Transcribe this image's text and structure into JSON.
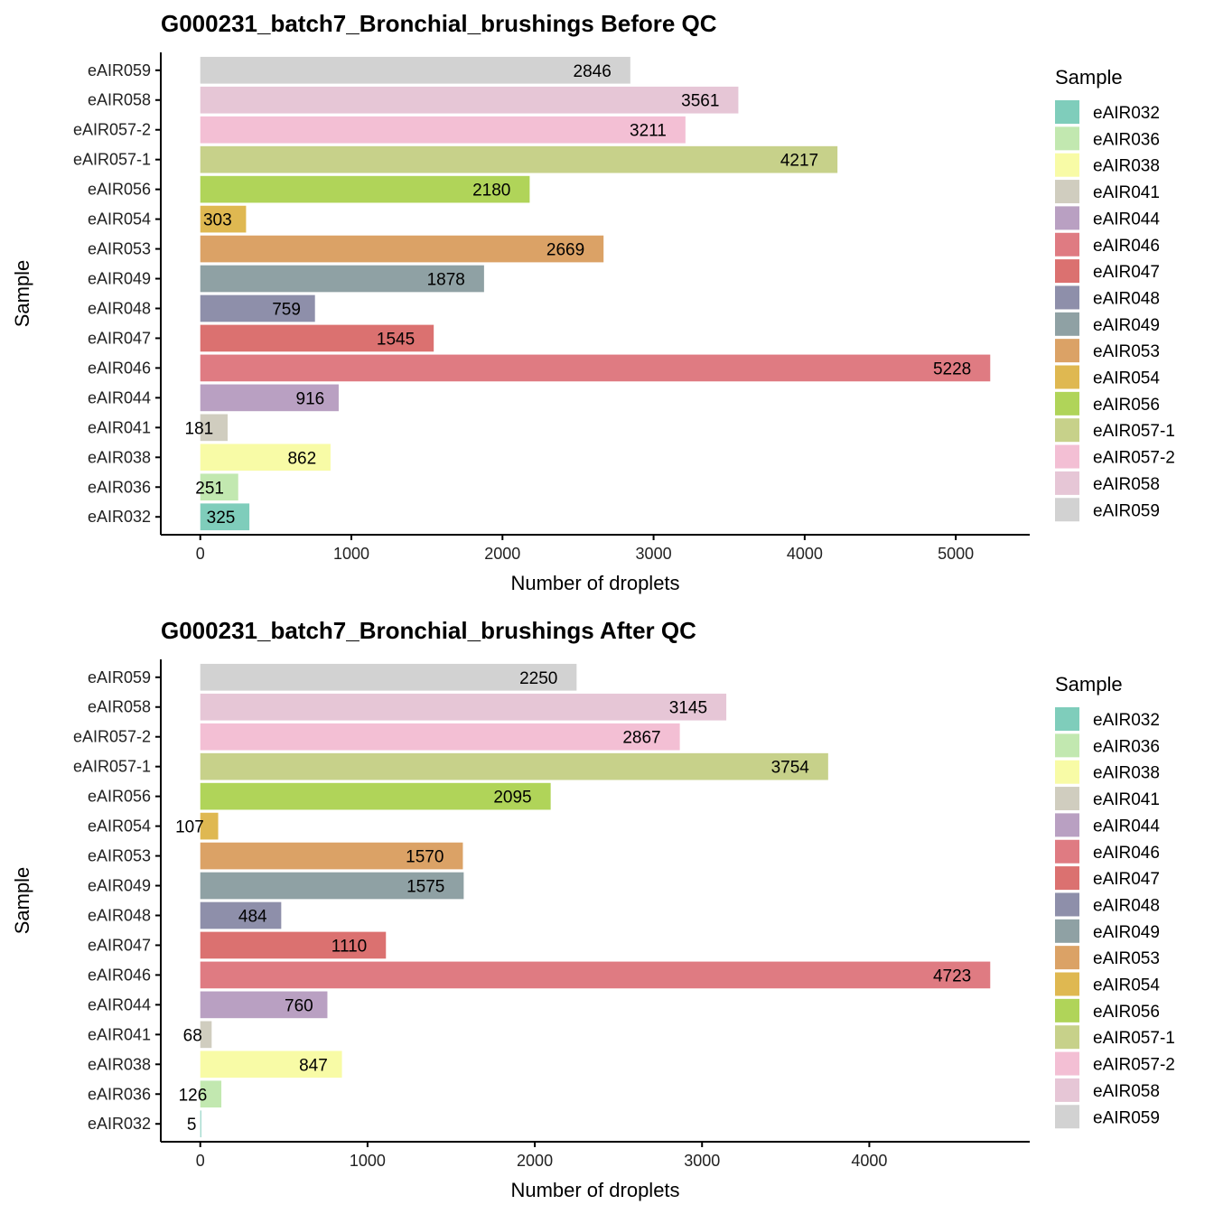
{
  "legend": {
    "title": "Sample",
    "items": [
      "eAIR032",
      "eAIR036",
      "eAIR038",
      "eAIR041",
      "eAIR044",
      "eAIR046",
      "eAIR047",
      "eAIR048",
      "eAIR049",
      "eAIR053",
      "eAIR054",
      "eAIR056",
      "eAIR057-1",
      "eAIR057-2",
      "eAIR058",
      "eAIR059"
    ],
    "colors": [
      "#7FCDBB",
      "#C2E8B0",
      "#F8FBA6",
      "#D0CDBF",
      "#B9A0C2",
      "#DF7B82",
      "#DB7170",
      "#8E8FAA",
      "#8FA1A4",
      "#DBA266",
      "#DFB851",
      "#B0D459",
      "#C7D18A",
      "#F3BFD4",
      "#E6C6D6",
      "#D2D2D2"
    ]
  },
  "chart_data": [
    {
      "type": "bar",
      "orientation": "horizontal",
      "title": "G000231_batch7_Bronchial_brushings Before QC",
      "xlabel": "Number of droplets",
      "ylabel": "Sample",
      "categories": [
        "eAIR032",
        "eAIR036",
        "eAIR038",
        "eAIR041",
        "eAIR044",
        "eAIR046",
        "eAIR047",
        "eAIR048",
        "eAIR049",
        "eAIR053",
        "eAIR054",
        "eAIR056",
        "eAIR057-1",
        "eAIR057-2",
        "eAIR058",
        "eAIR059"
      ],
      "values": [
        325,
        251,
        862,
        181,
        916,
        5228,
        1545,
        759,
        1878,
        2669,
        303,
        2180,
        4217,
        3211,
        3561,
        2846
      ],
      "xticks": [
        0,
        1000,
        2000,
        3000,
        4000,
        5000
      ],
      "xlim": [
        0,
        5228
      ],
      "grid": false,
      "legend_position": "right"
    },
    {
      "type": "bar",
      "orientation": "horizontal",
      "title": "G000231_batch7_Bronchial_brushings After QC",
      "xlabel": "Number of droplets",
      "ylabel": "Sample",
      "categories": [
        "eAIR032",
        "eAIR036",
        "eAIR038",
        "eAIR041",
        "eAIR044",
        "eAIR046",
        "eAIR047",
        "eAIR048",
        "eAIR049",
        "eAIR053",
        "eAIR054",
        "eAIR056",
        "eAIR057-1",
        "eAIR057-2",
        "eAIR058",
        "eAIR059"
      ],
      "values": [
        5,
        126,
        847,
        68,
        760,
        4723,
        1110,
        484,
        1575,
        1570,
        107,
        2095,
        3754,
        2867,
        3145,
        2250
      ],
      "xticks": [
        0,
        1000,
        2000,
        3000,
        4000
      ],
      "xlim": [
        0,
        4723
      ],
      "grid": false,
      "legend_position": "right"
    }
  ]
}
